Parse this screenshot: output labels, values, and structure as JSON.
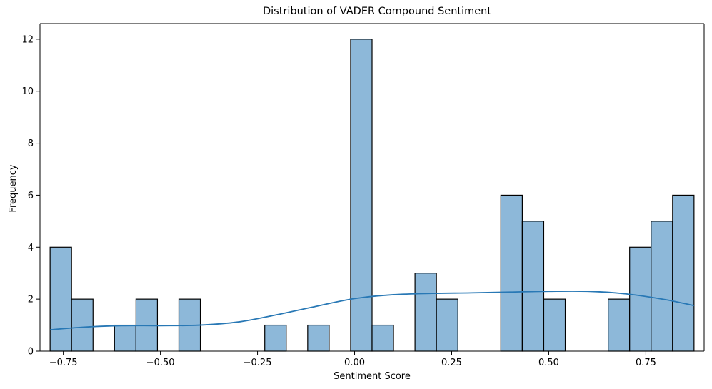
{
  "chart_data": {
    "type": "bar",
    "subtype": "histogram-with-kde",
    "title": "Distribution of VADER Compound Sentiment",
    "xlabel": "Sentiment Score",
    "ylabel": "Frequency",
    "xlim": [
      -0.81,
      0.9
    ],
    "ylim": [
      0,
      12.6
    ],
    "xticks": [
      -0.75,
      -0.5,
      -0.25,
      0.0,
      0.25,
      0.5,
      0.75
    ],
    "xtick_labels": [
      "−0.75",
      "−0.50",
      "−0.25",
      "0.00",
      "0.25",
      "0.50",
      "0.75"
    ],
    "yticks": [
      0,
      2,
      4,
      6,
      8,
      10,
      12
    ],
    "ytick_labels": [
      "0",
      "2",
      "4",
      "6",
      "8",
      "10",
      "12"
    ],
    "grid": false,
    "legend": "none",
    "bins": {
      "start": -0.784,
      "end": 0.874,
      "count": 30,
      "counts": [
        4,
        2,
        0,
        1,
        2,
        0,
        2,
        0,
        0,
        0,
        1,
        0,
        1,
        0,
        12,
        1,
        0,
        3,
        2,
        0,
        0,
        6,
        5,
        2,
        0,
        0,
        2,
        4,
        5,
        6
      ]
    },
    "kde": {
      "x": [
        -0.784,
        -0.7,
        -0.6,
        -0.5,
        -0.4,
        -0.3,
        -0.2,
        -0.1,
        0.0,
        0.1,
        0.2,
        0.3,
        0.4,
        0.5,
        0.6,
        0.7,
        0.8,
        0.874
      ],
      "y": [
        0.82,
        0.92,
        0.98,
        0.98,
        1.0,
        1.12,
        1.4,
        1.72,
        2.02,
        2.17,
        2.22,
        2.24,
        2.27,
        2.3,
        2.3,
        2.2,
        1.98,
        1.75
      ]
    },
    "colors": {
      "bar_fill": "#8db8d9",
      "bar_edge": "#000000",
      "kde_line": "#2878b5"
    }
  }
}
